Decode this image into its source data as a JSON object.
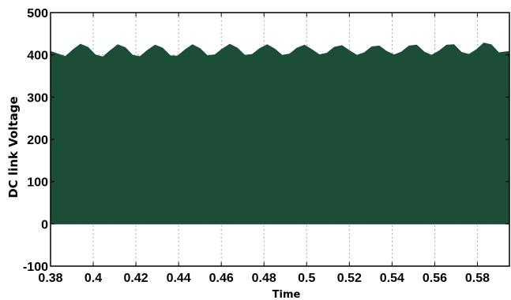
{
  "chart_data": {
    "type": "area",
    "title": "",
    "xlabel": "Time",
    "ylabel": "DC link Voltage",
    "xlim": [
      0.38,
      0.595
    ],
    "ylim": [
      -100,
      500
    ],
    "x_ticks": [
      0.38,
      0.4,
      0.42,
      0.44,
      0.46,
      0.48,
      0.5,
      0.52,
      0.54,
      0.56,
      0.58
    ],
    "x_tick_labels": [
      "0.38",
      "0.4",
      "0.42",
      "0.44",
      "0.46",
      "0.48",
      "0.5",
      "0.52",
      "0.54",
      "0.56",
      "0.58"
    ],
    "y_ticks": [
      -100,
      0,
      100,
      200,
      300,
      400,
      500
    ],
    "y_tick_labels": [
      "-100",
      "0",
      "100",
      "200",
      "300",
      "400",
      "500"
    ],
    "grid": true,
    "colors": {
      "fill": "#1c4d36",
      "grid": "#9a9a9a",
      "axis": "#000000"
    },
    "series": [
      {
        "fill_bottom": 0,
        "envelope_x": [
          0.38,
          0.3835,
          0.387,
          0.3905,
          0.394,
          0.3975,
          0.401,
          0.4045,
          0.408,
          0.4115,
          0.415,
          0.4185,
          0.422,
          0.4255,
          0.429,
          0.4325,
          0.436,
          0.4395,
          0.443,
          0.4465,
          0.45,
          0.4535,
          0.457,
          0.4605,
          0.464,
          0.4675,
          0.471,
          0.4745,
          0.478,
          0.4815,
          0.485,
          0.4885,
          0.492,
          0.4955,
          0.499,
          0.5025,
          0.506,
          0.5095,
          0.513,
          0.5165,
          0.52,
          0.5235,
          0.527,
          0.5305,
          0.534,
          0.5375,
          0.541,
          0.5445,
          0.548,
          0.5515,
          0.555,
          0.5585,
          0.562,
          0.5655,
          0.569,
          0.5725,
          0.576,
          0.5795,
          0.583,
          0.5865,
          0.59,
          0.595
        ],
        "envelope_y": [
          408,
          402,
          396,
          412,
          425,
          418,
          400,
          395,
          410,
          424,
          417,
          399,
          396,
          411,
          423,
          416,
          398,
          397,
          412,
          424,
          415,
          398,
          400,
          414,
          425,
          416,
          399,
          401,
          415,
          424,
          414,
          399,
          402,
          416,
          423,
          412,
          400,
          404,
          418,
          422,
          410,
          399,
          405,
          419,
          421,
          408,
          400,
          407,
          421,
          423,
          407,
          399,
          409,
          423,
          424,
          406,
          401,
          412,
          428,
          424,
          405,
          408
        ]
      }
    ]
  }
}
